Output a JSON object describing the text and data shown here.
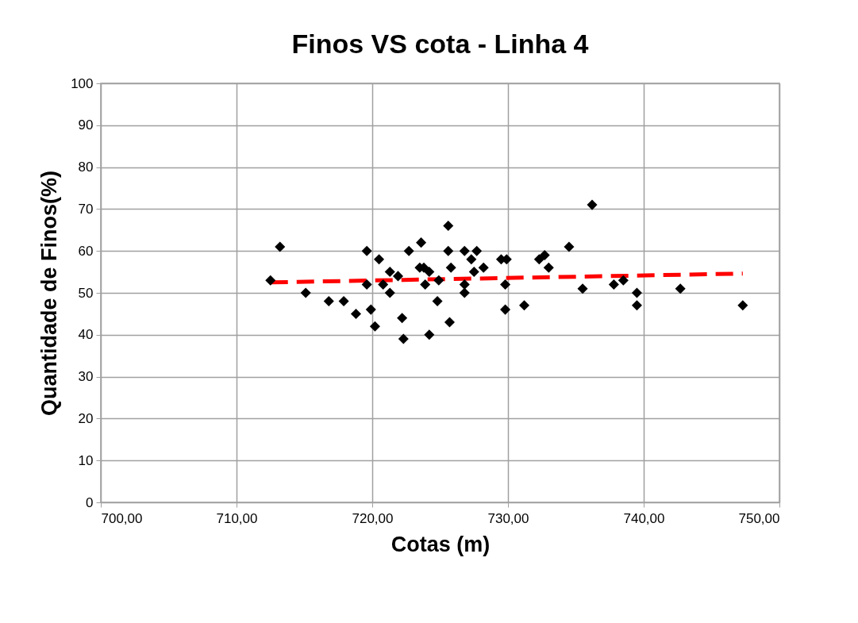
{
  "chart_data": {
    "type": "scatter",
    "title": "Finos VS cota - Linha 4",
    "xlabel": "Cotas (m)",
    "ylabel": "Quantidade de Finos(%)",
    "xlim": [
      700,
      750
    ],
    "xticks": [
      {
        "value": 700,
        "label": "700,00"
      },
      {
        "value": 710,
        "label": "710,00"
      },
      {
        "value": 720,
        "label": "720,00"
      },
      {
        "value": 730,
        "label": "730,00"
      },
      {
        "value": 740,
        "label": "740,00"
      },
      {
        "value": 750,
        "label": "750,00"
      }
    ],
    "ylim": [
      0,
      100
    ],
    "yticks": [
      0,
      10,
      20,
      30,
      40,
      50,
      60,
      70,
      80,
      90,
      100
    ],
    "grid": true,
    "marker": "diamond",
    "series": [
      {
        "color": "#000000",
        "x": [
          713.2,
          712.5,
          715.1,
          716.8,
          717.9,
          718.8,
          719.6,
          720.5,
          719.6,
          719.9,
          720.2,
          721.3,
          720.8,
          721.3,
          721.9,
          722.2,
          722.3,
          722.7,
          723.6,
          723.5,
          723.8,
          724.2,
          723.9,
          724.2,
          724.8,
          724.9,
          725.6,
          725.6,
          725.8,
          725.7,
          726.8,
          727.7,
          727.3,
          728.2,
          727.5,
          726.8,
          726.8,
          729.5,
          729.9,
          729.8,
          729.8,
          736.2,
          734.5,
          732.3,
          732.7,
          733.0,
          731.2,
          735.5,
          737.8,
          738.5,
          739.5,
          739.5,
          742.7,
          747.3
        ],
        "values": [
          61,
          53,
          50,
          48,
          48,
          45,
          60,
          58,
          52,
          46,
          42,
          55,
          52,
          50,
          54,
          44,
          39,
          60,
          62,
          56,
          56,
          55,
          52,
          40,
          48,
          53,
          66,
          60,
          56,
          43,
          60,
          60,
          58,
          56,
          55,
          52,
          50,
          58,
          58,
          52,
          46,
          71,
          61,
          58,
          59,
          56,
          47,
          51,
          52,
          53,
          50,
          47,
          51,
          47
        ]
      },
      {
        "type": "line",
        "color": "#ff0000",
        "line_style": "dashed",
        "marker": "none",
        "x": [
          712.5,
          747.3
        ],
        "values": [
          52.5,
          54.6
        ]
      }
    ]
  }
}
